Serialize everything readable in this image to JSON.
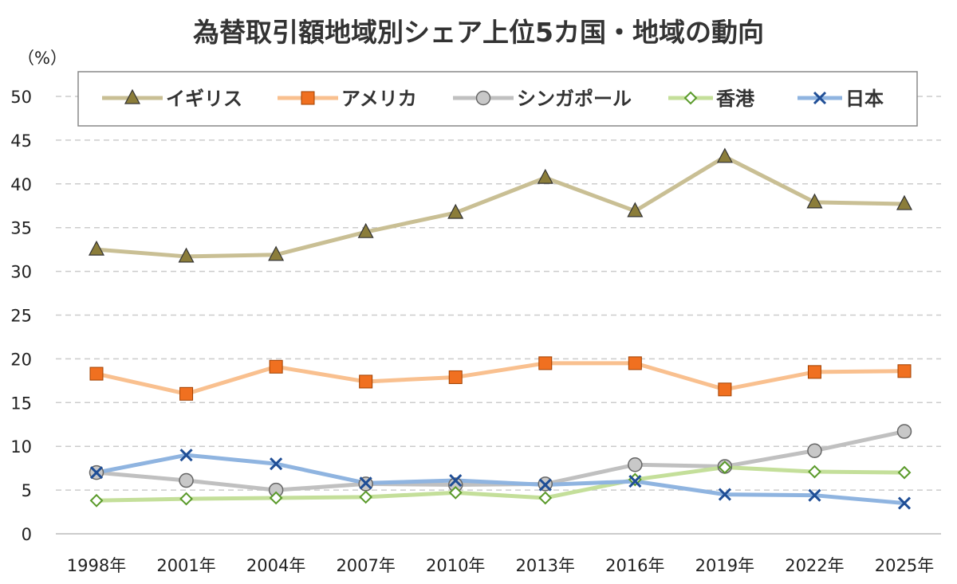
{
  "chart_data": {
    "type": "line",
    "title": "為替取引額地域別シェア上位5カ国・地域の動向",
    "ylabel": "（%）",
    "xlabel": "",
    "ylim": [
      0,
      50
    ],
    "yticks": [
      "0",
      "5",
      "10",
      "15",
      "20",
      "25",
      "30",
      "35",
      "40",
      "45",
      "50"
    ],
    "grid": true,
    "legend_position": "top",
    "categories": [
      "1998年",
      "2001年",
      "2004年",
      "2007年",
      "2010年",
      "2013年",
      "2016年",
      "2019年",
      "2022年",
      "2025年"
    ],
    "series": [
      {
        "name": "イギリス",
        "color": "#c9bf94",
        "marker": "triangle",
        "marker_color": "#8b7d3a",
        "values": [
          32.5,
          31.7,
          31.9,
          34.5,
          36.7,
          40.7,
          36.9,
          43.1,
          37.9,
          37.7
        ]
      },
      {
        "name": "アメリカ",
        "color": "#f9c08f",
        "marker": "square",
        "marker_color": "#f07020",
        "values": [
          18.3,
          16.0,
          19.1,
          17.4,
          17.9,
          19.5,
          19.5,
          16.5,
          18.5,
          18.6
        ]
      },
      {
        "name": "シンガポール",
        "color": "#c0c0c0",
        "marker": "circle",
        "marker_color": "#c8c8c8",
        "values": [
          7.0,
          6.1,
          5.0,
          5.7,
          5.6,
          5.7,
          7.9,
          7.7,
          9.5,
          11.7
        ]
      },
      {
        "name": "香港",
        "color": "#c4df9a",
        "marker": "diamond",
        "marker_color": "#5a9a2a",
        "values": [
          3.8,
          4.0,
          4.1,
          4.2,
          4.7,
          4.1,
          6.2,
          7.6,
          7.1,
          7.0
        ]
      },
      {
        "name": "日本",
        "color": "#8fb4e0",
        "marker": "x",
        "marker_color": "#1f4e96",
        "values": [
          7.0,
          9.0,
          8.0,
          5.8,
          6.1,
          5.6,
          6.0,
          4.5,
          4.4,
          3.5
        ]
      }
    ]
  }
}
